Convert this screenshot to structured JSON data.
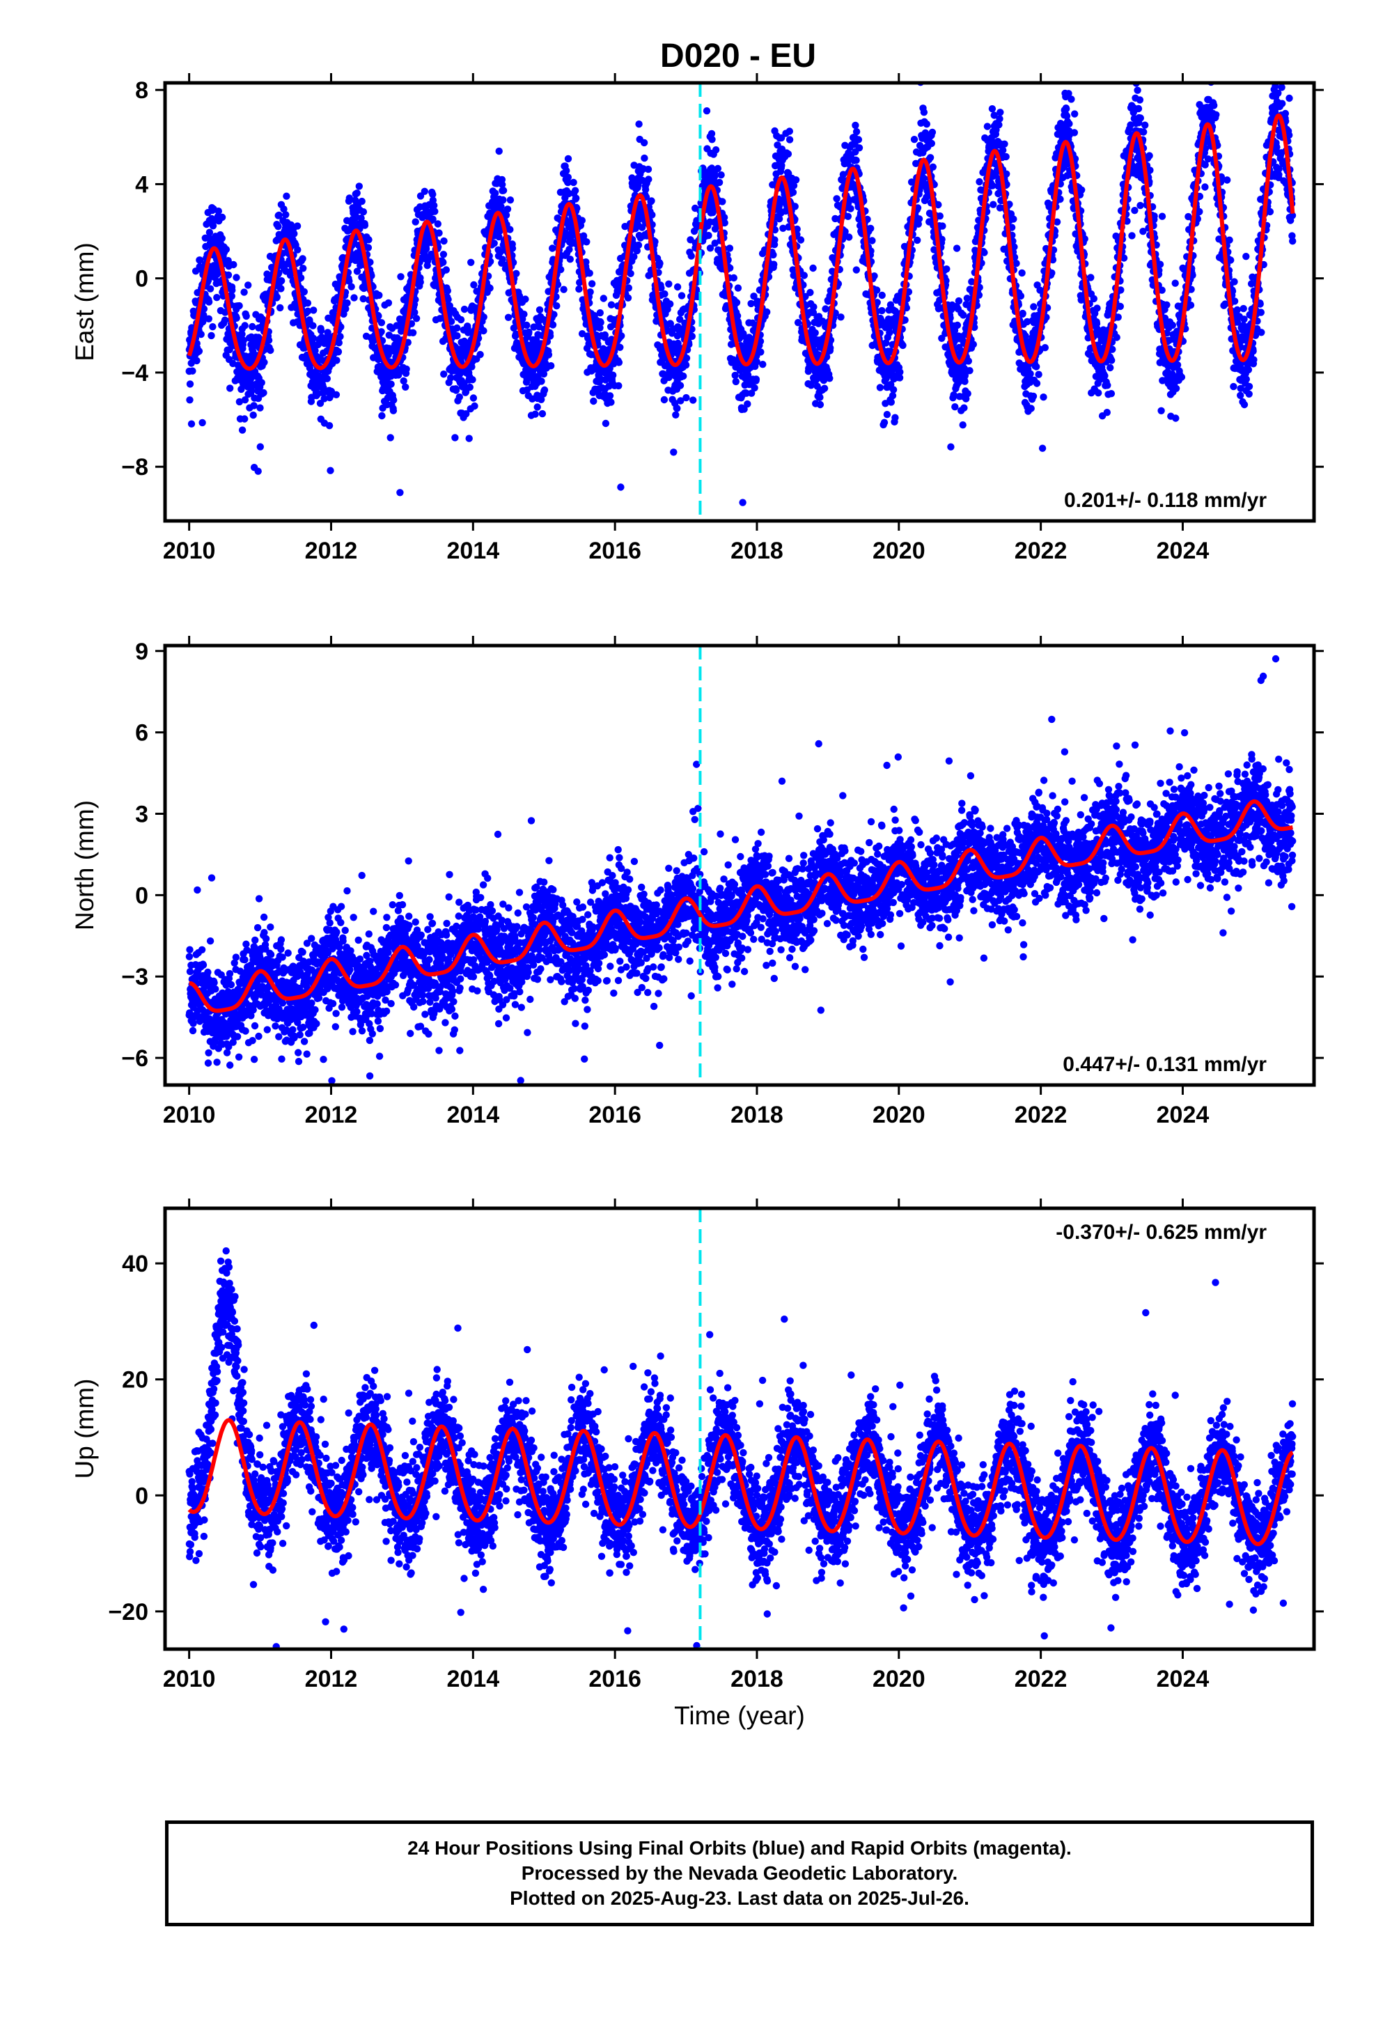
{
  "title": "D020 - EU",
  "footer": {
    "lines": [
      "24 Hour Positions Using Final Orbits (blue) and Rapid Orbits (magenta).",
      "Processed by the Nevada Geodetic Laboratory.",
      "Plotted on 2025-Aug-23. Last data on 2025-Jul-26."
    ]
  },
  "colors": {
    "points": "#0000ff",
    "model": "#ff0000",
    "event_line": "#00e5ee"
  },
  "chart_data": [
    {
      "type": "scatter",
      "ylabel": "East (mm)",
      "xlabel": "",
      "xlim": [
        2009.66,
        2025.85
      ],
      "ylim": [
        -10.3,
        8.3
      ],
      "yticks": [
        -8,
        -4,
        0,
        4,
        8
      ],
      "xticks": [
        2010,
        2012,
        2014,
        2016,
        2018,
        2020,
        2022,
        2024
      ],
      "rate_label": "0.201+/- 0.118 mm/yr",
      "rate_position": "bottom-right",
      "event_line_x": 2017.2,
      "series": [
        {
          "kind": "points",
          "x_range": [
            2010.0,
            2025.55
          ],
          "model": {
            "rate": 0.201,
            "offset": -0.2,
            "annual_amp": 2.5,
            "annual_amp_growth": 0.07,
            "annual_peak_month": 5.2,
            "semiannual_amp": 0.35,
            "scatter": 1.0
          },
          "color": "#0000ff"
        },
        {
          "kind": "model-line",
          "x_range": [
            2010.0,
            2025.55
          ],
          "color": "#ff0000"
        }
      ]
    },
    {
      "type": "scatter",
      "ylabel": "North (mm)",
      "xlabel": "",
      "xlim": [
        2009.66,
        2025.85
      ],
      "ylim": [
        -7.0,
        9.2
      ],
      "yticks": [
        -6,
        -3,
        0,
        3,
        6,
        9
      ],
      "xticks": [
        2010,
        2012,
        2014,
        2016,
        2018,
        2020,
        2022,
        2024
      ],
      "rate_label": "0.447+/- 0.131 mm/yr",
      "rate_position": "bottom-right",
      "event_line_x": 2017.2,
      "series": [
        {
          "kind": "points",
          "x_range": [
            2010.0,
            2025.55
          ],
          "model": {
            "rate": 0.447,
            "offset": -0.65,
            "annual_amp": 0.6,
            "annual_amp_growth": 0.0,
            "annual_peak_month": 1.0,
            "semiannual_amp": 0.15,
            "scatter": 0.85
          },
          "color": "#0000ff"
        },
        {
          "kind": "model-line",
          "x_range": [
            2010.0,
            2025.55
          ],
          "color": "#ff0000"
        }
      ]
    },
    {
      "type": "scatter",
      "ylabel": "Up (mm)",
      "xlabel": "Time (year)",
      "xlim": [
        2009.66,
        2025.85
      ],
      "ylim": [
        -26.5,
        49.5
      ],
      "yticks": [
        -20,
        0,
        20,
        40
      ],
      "xticks": [
        2010,
        2012,
        2014,
        2016,
        2018,
        2020,
        2022,
        2024
      ],
      "rate_label": "-0.370+/- 0.625 mm/yr",
      "rate_position": "top-right",
      "event_line_x": 2017.2,
      "series": [
        {
          "kind": "points",
          "x_range": [
            2010.0,
            2025.55
          ],
          "model": {
            "rate": -0.37,
            "offset": 1.8,
            "annual_amp": 8.0,
            "annual_amp_growth": 0.0,
            "annual_peak_month": 7.7,
            "semiannual_amp": 0.6,
            "scatter": 4.2
          },
          "color": "#0000ff"
        },
        {
          "kind": "model-line",
          "x_range": [
            2010.0,
            2025.55
          ],
          "color": "#ff0000"
        }
      ]
    }
  ]
}
